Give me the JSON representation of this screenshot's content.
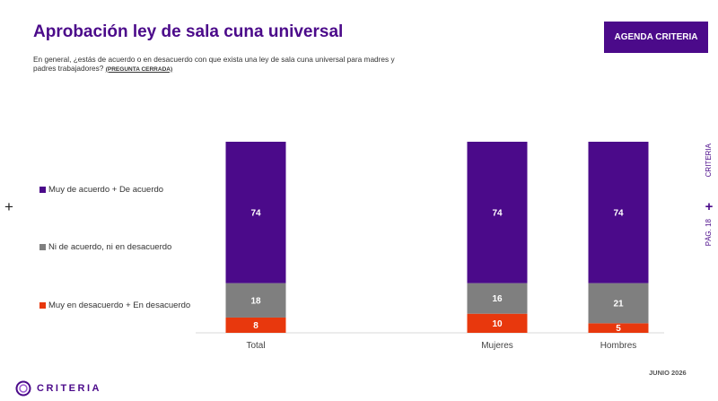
{
  "header": {
    "title": "Aprobación ley de sala cuna universal",
    "question": "En general, ¿estás de acuerdo o en desacuerdo con que exista una ley de sala cuna universal para madres y padres trabajadores?",
    "question_note": "(PREGUNTA CERRADA)",
    "badge": "AGENDA CRITERIA"
  },
  "side": {
    "brand": "CRITERIA",
    "plus": "+",
    "page": "PÁG. 18"
  },
  "left_plus": "+",
  "footer": {
    "date": "JUNIO 2026",
    "brand": "CRITERIA"
  },
  "colors": {
    "primary": "#4b0a8a",
    "gray": "#7f7f7f",
    "red": "#e8380d"
  },
  "chart_data": {
    "type": "bar",
    "stacked": true,
    "categories": [
      "Total",
      "Mujeres",
      "Hombres"
    ],
    "series": [
      {
        "name": "Muy en desacuerdo + En desacuerdo",
        "color": "#e8380d",
        "values": [
          8,
          10,
          5
        ]
      },
      {
        "name": "Ni de acuerdo, ni en desacuerdo",
        "color": "#7f7f7f",
        "values": [
          18,
          16,
          21
        ]
      },
      {
        "name": "Muy de acuerdo + De acuerdo",
        "color": "#4b0a8a",
        "values": [
          74,
          74,
          74
        ]
      }
    ],
    "legend": [
      "Muy de acuerdo + De acuerdo",
      "Ni de acuerdo, ni en desacuerdo",
      "Muy en desacuerdo + En desacuerdo"
    ],
    "legend_colors": [
      "#4b0a8a",
      "#7f7f7f",
      "#e8380d"
    ],
    "ylim": [
      0,
      100
    ],
    "grid": false,
    "legend_position": "left",
    "data_labels": true
  }
}
